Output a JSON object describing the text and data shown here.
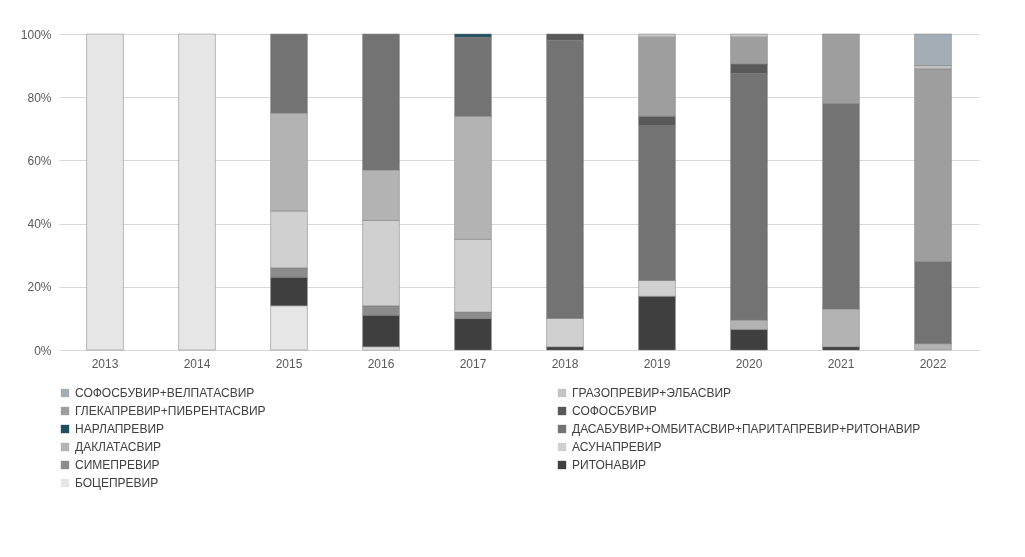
{
  "chart_data": {
    "type": "bar",
    "stacked": true,
    "categories": [
      "2013",
      "2014",
      "2015",
      "2016",
      "2017",
      "2018",
      "2019",
      "2020",
      "2021",
      "2022"
    ],
    "series": [
      {
        "name": "БОЦЕПРЕВИР",
        "color": "#e6e6e6",
        "values": [
          100,
          100,
          14,
          1,
          null,
          null,
          null,
          null,
          null,
          null
        ]
      },
      {
        "name": "РИТОНАВИР",
        "color": "#3f3f3f",
        "values": [
          null,
          null,
          9,
          10,
          10,
          1,
          17,
          6.5,
          1,
          null
        ]
      },
      {
        "name": "СИМЕПРЕВИР",
        "color": "#8c8c8c",
        "values": [
          null,
          null,
          3,
          3,
          2,
          null,
          null,
          null,
          null,
          null
        ]
      },
      {
        "name": "АСУНАПРЕВИР",
        "color": "#d0d0d0",
        "values": [
          null,
          null,
          18,
          27,
          23,
          9,
          5,
          null,
          null,
          null
        ]
      },
      {
        "name": "ДАКЛАТАСВИР",
        "color": "#b3b3b3",
        "values": [
          null,
          null,
          31,
          16,
          39,
          null,
          null,
          3,
          12,
          2
        ]
      },
      {
        "name": "ДАСАБУВИР+ОМБИТАСВИР+ПАРИТАПРЕВИР+РИТОНАВИР",
        "color": "#737373",
        "values": [
          null,
          null,
          25,
          43,
          25,
          88,
          49,
          78,
          65,
          26
        ]
      },
      {
        "name": "НАРЛАПРЕВИР",
        "color": "#1f4e5f",
        "values": [
          null,
          null,
          null,
          null,
          1,
          null,
          null,
          null,
          null,
          null
        ]
      },
      {
        "name": "СОФОСБУВИР",
        "color": "#595959",
        "values": [
          null,
          null,
          null,
          null,
          null,
          2,
          3,
          3,
          null,
          null
        ]
      },
      {
        "name": "ГЛЕКАПРЕВИР+ПИБРЕНТАСВИР",
        "color": "#9e9e9e",
        "values": [
          null,
          null,
          null,
          null,
          null,
          null,
          25,
          8.5,
          22,
          61
        ]
      },
      {
        "name": "ГРАЗОПРЕВИР+ЭЛБАСВИР",
        "color": "#c4c4c4",
        "values": [
          null,
          null,
          null,
          null,
          null,
          null,
          1,
          1,
          null,
          1
        ]
      },
      {
        "name": "СОФОСБУВИР+ВЕЛПАТАСВИР",
        "color": "#a3adb5",
        "values": [
          null,
          null,
          null,
          null,
          null,
          null,
          null,
          null,
          null,
          10
        ]
      }
    ],
    "ylim": [
      0,
      100
    ],
    "yticks": [
      {
        "value": 0,
        "label": "0%"
      },
      {
        "value": 20,
        "label": "20%"
      },
      {
        "value": 40,
        "label": "40%"
      },
      {
        "value": 60,
        "label": "60%"
      },
      {
        "value": 80,
        "label": "80%"
      },
      {
        "value": 100,
        "label": "100%"
      }
    ],
    "grid": "y",
    "legend": "bottom"
  }
}
